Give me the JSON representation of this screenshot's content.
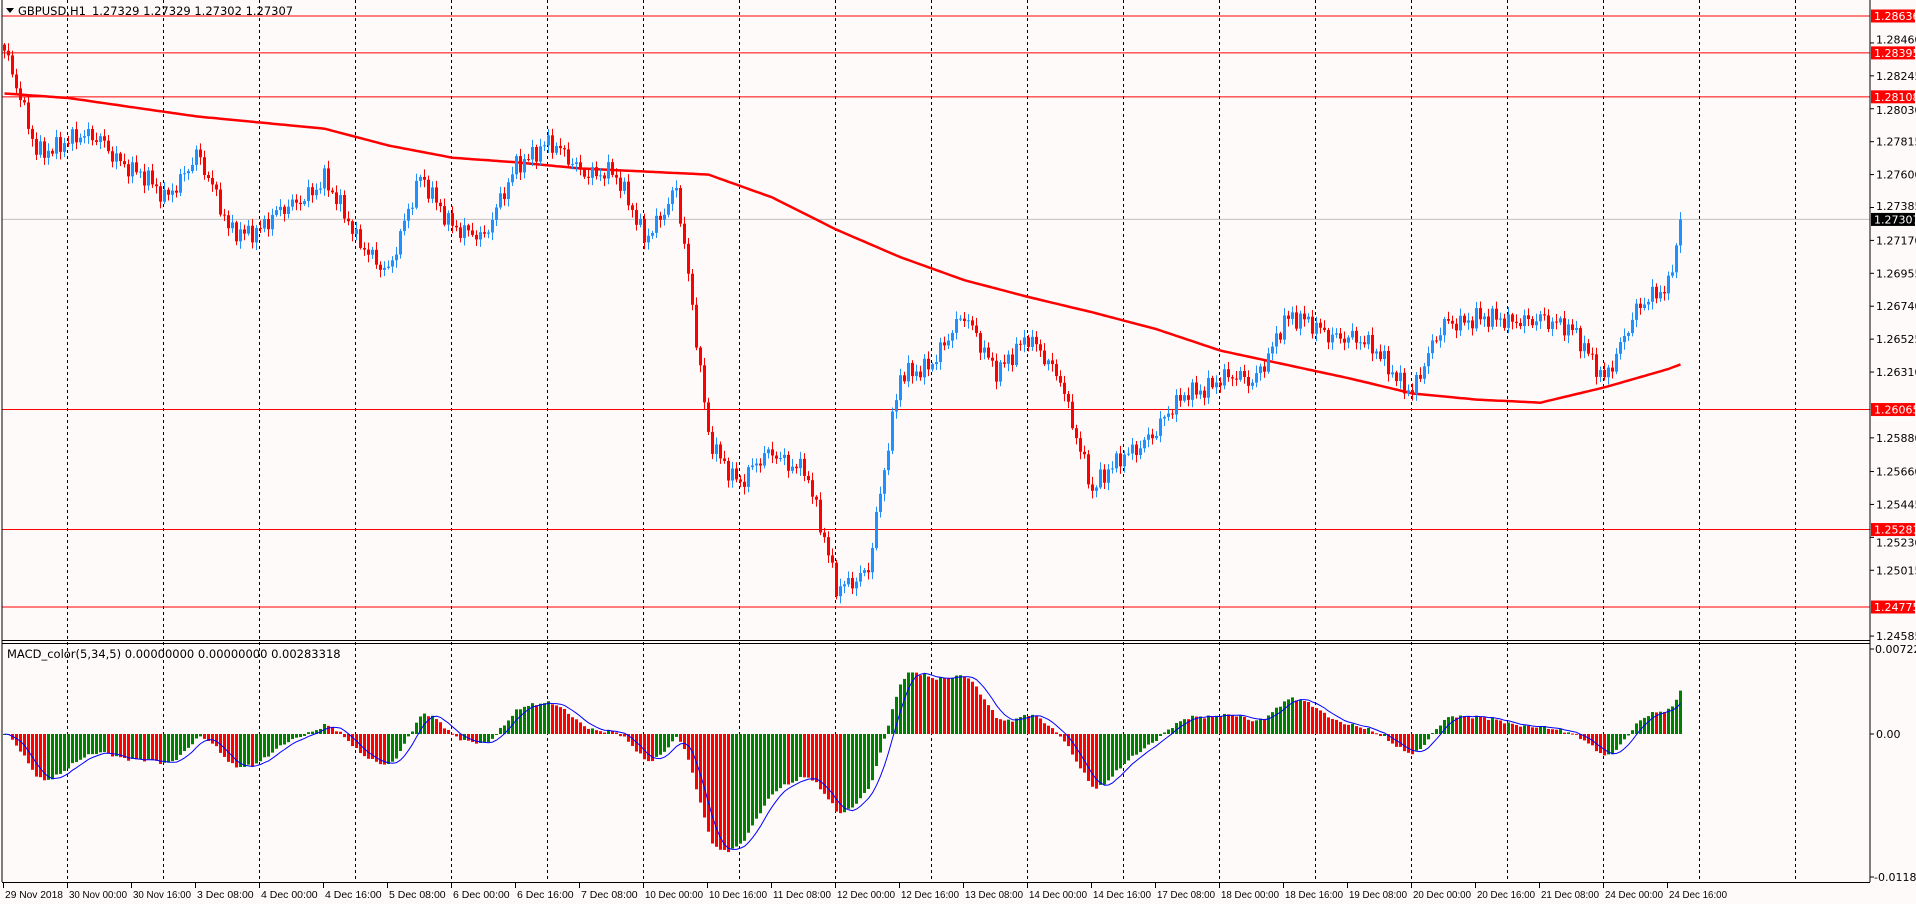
{
  "header": {
    "symbol": "GBPUSD,H1",
    "ohlc": "1.27329 1.27329 1.27302 1.27307"
  },
  "macd_panel": {
    "label": "MACD_color(5,34,5) 0.00000000 0.00000000 0.00283318",
    "axis_top": "0.0072255",
    "axis_zero": "0.00",
    "axis_bottom": "-0.0118570"
  },
  "colors": {
    "background": "#fffafa",
    "bull_candle": "#1e90ff",
    "bear_candle": "#ff0000",
    "moving_average": "#ff0000",
    "level_line": "#ff0000",
    "macd_up": "#008000",
    "macd_down": "#ff0000",
    "signal_line": "#0000ff",
    "current_price_line": "#c0c0c0"
  },
  "chart_data": {
    "type": "candlestick",
    "timeframe": "H1",
    "ylim": [
      1.24585,
      1.28675
    ],
    "grid": "vertical dashed, daily",
    "price_ticks": [
      "1.28460",
      "1.28245",
      "1.28030",
      "1.27815",
      "1.27600",
      "1.27385",
      "1.27170",
      "1.26955",
      "1.26740",
      "1.26525",
      "1.26310",
      "1.25880",
      "1.25660",
      "1.25445",
      "1.25230",
      "1.25015",
      "1.24585"
    ],
    "level_lines": [
      "1.28636",
      "1.28395",
      "1.28108",
      "1.26065",
      "1.25281",
      "1.24775"
    ],
    "current_price": "1.27307",
    "time_labels": [
      "29 Nov 2018",
      "30 Nov 00:00",
      "30 Nov 16:00",
      "3 Dec 08:00",
      "4 Dec 00:00",
      "4 Dec 16:00",
      "5 Dec 08:00",
      "6 Dec 00:00",
      "6 Dec 16:00",
      "7 Dec 08:00",
      "10 Dec 00:00",
      "10 Dec 16:00",
      "11 Dec 08:00",
      "12 Dec 00:00",
      "12 Dec 16:00",
      "13 Dec 08:00",
      "14 Dec 00:00",
      "14 Dec 16:00",
      "17 Dec 08:00",
      "18 Dec 00:00",
      "18 Dec 16:00",
      "19 Dec 08:00",
      "20 Dec 00:00",
      "20 Dec 16:00",
      "21 Dec 08:00",
      "24 Dec 00:00",
      "24 Dec 16:00"
    ],
    "close_every_8h": [
      1.2838,
      1.2778,
      1.278,
      1.2785,
      1.2762,
      1.2745,
      1.2774,
      1.2724,
      1.2726,
      1.2738,
      1.276,
      1.2715,
      1.27,
      1.2755,
      1.273,
      1.2715,
      1.277,
      1.2778,
      1.2765,
      1.276,
      1.272,
      1.275,
      1.259,
      1.2558,
      1.2578,
      1.257,
      1.2488,
      1.2505,
      1.2626,
      1.264,
      1.2665,
      1.2635,
      1.265,
      1.263,
      1.255,
      1.258,
      1.259,
      1.262,
      1.2625,
      1.2625,
      1.2665,
      1.266,
      1.2655,
      1.264,
      1.262,
      1.266,
      1.267,
      1.266,
      1.267,
      1.2655,
      1.263,
      1.2668,
      1.269
    ],
    "last_close": 1.27307,
    "moving_average_every_16h": [
      1.2813,
      1.281,
      1.2804,
      1.2798,
      1.2794,
      1.279,
      1.2779,
      1.2771,
      1.2768,
      1.2764,
      1.2762,
      1.276,
      1.2745,
      1.2724,
      1.2706,
      1.2691,
      1.268,
      1.267,
      1.2659,
      1.2645,
      1.2636,
      1.2627,
      1.2617,
      1.2613,
      1.2611,
      1.2621,
      1.2633
    ],
    "moving_average_last": 1.2636,
    "macd": {
      "fast": 5,
      "slow": 34,
      "signal": 5,
      "ylim": [
        -0.011857,
        0.0072255
      ]
    }
  }
}
